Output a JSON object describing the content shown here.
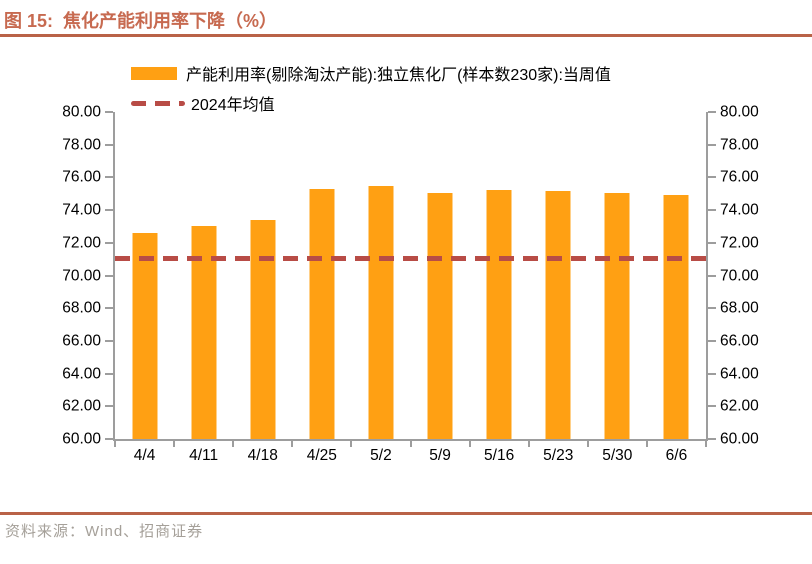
{
  "figure": {
    "title": "图 15:  焦化产能利用率下降（%）",
    "source": "资料来源：Wind、招商证券"
  },
  "colors": {
    "bar": "#FFA013",
    "mean_line": "#B84C46",
    "title_text": "#C76A50",
    "rule": "#B96247",
    "source_text": "#A5A099",
    "axis": "#9D9D9D",
    "axis_label": "#000000"
  },
  "chart_data": {
    "type": "bar",
    "title": "焦化产能利用率下降（%）",
    "categories": [
      "4/4",
      "4/11",
      "4/18",
      "4/25",
      "5/2",
      "5/9",
      "5/16",
      "5/23",
      "5/30",
      "6/6"
    ],
    "series": [
      {
        "name": "产能利用率(剔除淘汰产能):独立焦化厂(样本数230家):当周值",
        "type": "bar",
        "values": [
          72.6,
          73.0,
          73.4,
          75.28,
          75.45,
          75.04,
          75.25,
          75.19,
          75.07,
          74.91
        ]
      },
      {
        "name": "2024年均值",
        "type": "dashed-line",
        "value": 71.1
      }
    ],
    "xlabel": "",
    "ylabel": "",
    "ylim": [
      60,
      80
    ],
    "ytick_step": 2,
    "ytick_values": [
      80,
      78,
      76,
      74,
      72,
      70,
      68,
      66,
      64,
      62,
      60
    ],
    "yticks": [
      "80.00",
      "78.00",
      "76.00",
      "74.00",
      "72.00",
      "70.00",
      "68.00",
      "66.00",
      "64.00",
      "62.00",
      "60.00"
    ],
    "grid": false,
    "legend_position": "top",
    "dual_axis": true
  }
}
